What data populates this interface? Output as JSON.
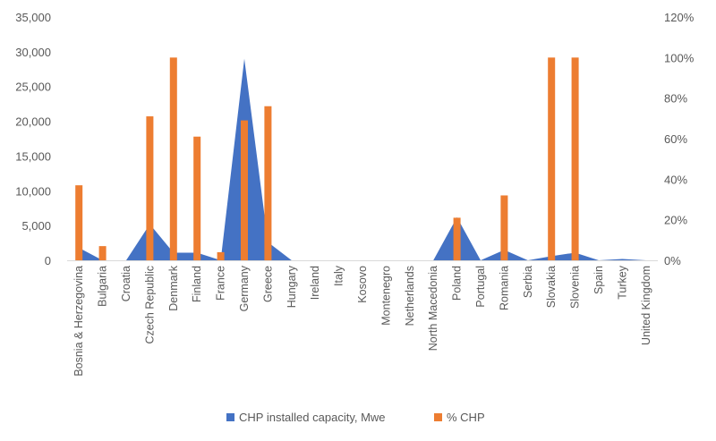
{
  "chart_data": {
    "type": "area",
    "title": "",
    "categories": [
      "Bosnia & Herzegovina",
      "Bulgaria",
      "Croatia",
      "Czech Republic",
      "Denmark",
      "Finland",
      "France",
      "Germany",
      "Greece",
      "Hungary",
      "Ireland",
      "Italy",
      "Kosovo",
      "Montenegro",
      "Netherlands",
      "North Macedonia",
      "Poland",
      "Portugal",
      "Romania",
      "Serbia",
      "Slovakia",
      "Slovenia",
      "Spain",
      "Turkey",
      "United Kingdom"
    ],
    "series": [
      {
        "name": "CHP installed capacity, Mwe",
        "type": "area",
        "axis": "left",
        "color": "#4472C4",
        "values": [
          1800,
          0,
          0,
          5200,
          1100,
          1100,
          0,
          29000,
          2600,
          0,
          0,
          0,
          0,
          0,
          0,
          0,
          6200,
          0,
          1500,
          0,
          600,
          1100,
          0,
          200,
          0
        ]
      },
      {
        "name": "% CHP",
        "type": "bar",
        "axis": "right",
        "color": "#ED7D31",
        "values": [
          0.37,
          0.07,
          0,
          0.71,
          1.0,
          0.61,
          0.04,
          0.69,
          0.76,
          0,
          0,
          0,
          0,
          0,
          0,
          0,
          0.21,
          0,
          0.32,
          0,
          1.0,
          1.0,
          0,
          0,
          0
        ]
      }
    ],
    "y_left": {
      "ylim": [
        0,
        35000
      ],
      "ticks": [
        0,
        5000,
        10000,
        15000,
        20000,
        25000,
        30000,
        35000
      ],
      "tick_labels": [
        "0",
        "5,000",
        "10,000",
        "15,000",
        "20,000",
        "25,000",
        "30,000",
        "35,000"
      ]
    },
    "y_right": {
      "ylim": [
        0,
        1.2
      ],
      "ticks": [
        0,
        0.2,
        0.4,
        0.6,
        0.8,
        1.0,
        1.2
      ],
      "tick_labels": [
        "0%",
        "20%",
        "40%",
        "60%",
        "80%",
        "100%",
        "120%"
      ]
    },
    "grid": false,
    "legend_position": "bottom",
    "legend": [
      "CHP installed capacity, Mwe",
      "% CHP"
    ]
  }
}
